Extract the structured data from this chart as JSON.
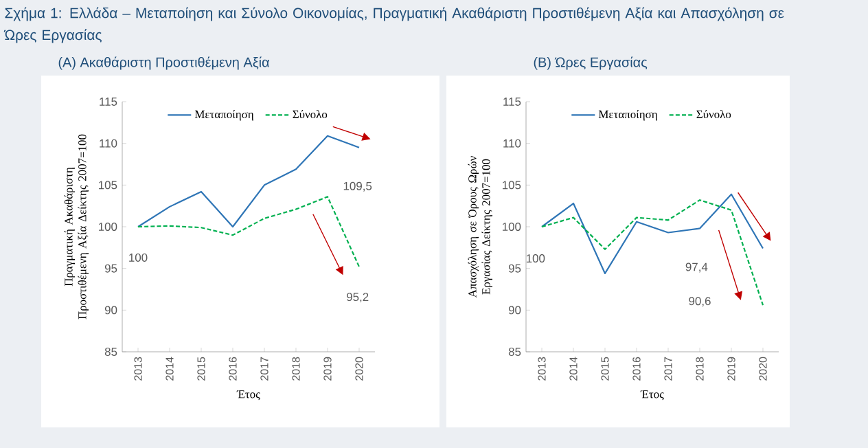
{
  "chart_data": [
    {
      "type": "line",
      "title": "Σχήμα 1: Ελλάδα – Μεταποίηση και Σύνολο Οικονομίας, Πραγματική Ακαθάριστη Προστιθέμενη Αξία και Απασχόληση σε Ώρες Εργασίας",
      "subtitle": "(Α) Ακαθάριστη Προστιθέμενη Αξία",
      "xlabel": "Έτος",
      "ylabel": "Πραγματική Ακαθάριστη Προστιθέμενη Αξία Δείκτης 2007=100",
      "categories": [
        "2013",
        "2014",
        "2015",
        "2016",
        "2017",
        "2018",
        "2019",
        "2020"
      ],
      "series": [
        {
          "name": "Μεταποίηση",
          "color": "#2e75b6",
          "line_style": "solid",
          "values": [
            100,
            102.4,
            104.2,
            100,
            105,
            106.9,
            110.9,
            109.5
          ]
        },
        {
          "name": "Σύνολο",
          "color": "#00b050",
          "line_style": "dashed",
          "values": [
            100,
            100.1,
            99.9,
            99,
            101,
            102.1,
            103.6,
            95.2
          ]
        }
      ],
      "ylim": [
        85,
        115
      ],
      "yticks": [
        85,
        90,
        95,
        100,
        105,
        110,
        115
      ],
      "legend": "top",
      "marker": "none",
      "annotations": [
        {
          "text": "100",
          "x": "2013",
          "y": 100
        },
        {
          "text": "109,5",
          "x": "2020",
          "y": 109.5
        },
        {
          "text": "95,2",
          "x": "2020",
          "y": 95.2
        }
      ]
    },
    {
      "type": "line",
      "subtitle": "(Β) Ώρες Εργασίας",
      "xlabel": "Έτος",
      "ylabel": "Απασχόληση σε Όρους Ωρών Εργασίας Δείκτης 2007=100",
      "categories": [
        "2013",
        "2014",
        "2015",
        "2016",
        "2017",
        "2018",
        "2019",
        "2020"
      ],
      "series": [
        {
          "name": "Μεταποίηση",
          "color": "#2e75b6",
          "line_style": "solid",
          "values": [
            100,
            102.8,
            94.4,
            100.6,
            99.3,
            99.8,
            103.9,
            97.4
          ]
        },
        {
          "name": "Σύνολο",
          "color": "#00b050",
          "line_style": "dashed",
          "values": [
            100,
            101.1,
            97.3,
            101.1,
            100.8,
            103.2,
            102,
            90.6
          ]
        }
      ],
      "ylim": [
        85,
        115
      ],
      "yticks": [
        85,
        90,
        95,
        100,
        105,
        110,
        115
      ],
      "legend": "top",
      "marker": "none",
      "annotations": [
        {
          "text": "100",
          "x": "2013",
          "y": 100
        },
        "97,4",
        "90,6"
      ]
    }
  ]
}
